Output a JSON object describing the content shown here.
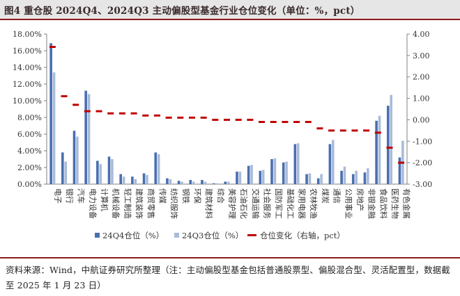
{
  "figure": {
    "title": "图4  重仓股 2024Q4、2024Q3 主动偏股型基金行业仓位变化（单位：%，pct）",
    "source": "资料来源：Wind，中航证券研究所整理（注：主动偏股型基金包括普通股票型、偏股混合型、灵活配置型，数据截至 2025 年 1 月 23 日）"
  },
  "chart_data": {
    "type": "bar",
    "categories": [
      "电子",
      "银行",
      "汽车",
      "电力设备",
      "计算机",
      "机械设备",
      "轻工制造",
      "建筑装饰",
      "商贸零售",
      "传媒",
      "纺织服饰",
      "钢铁",
      "环保",
      "建筑材料",
      "综合",
      "美容护理",
      "石油石化",
      "交通运输",
      "社会服务",
      "国防军工",
      "基础化工",
      "家用电器",
      "农林牧渔",
      "煤炭",
      "通信",
      "公用事业",
      "房地产",
      "非银金融",
      "食品饮料",
      "医药生物",
      "有色金属"
    ],
    "series": [
      {
        "name": "24Q4仓位（%）",
        "axis": "left",
        "color": "#4a6fb0",
        "values": [
          16.9,
          3.8,
          6.4,
          11.2,
          2.8,
          3.3,
          1.2,
          0.9,
          1.3,
          3.8,
          0.7,
          0.4,
          0.5,
          0.5,
          0.1,
          0.3,
          1.5,
          2.2,
          1.6,
          3.0,
          2.6,
          4.8,
          1.2,
          0.7,
          4.8,
          1.6,
          1.2,
          1.4,
          7.6,
          9.4,
          3.2
        ]
      },
      {
        "name": "24Q3仓位（%）",
        "axis": "left",
        "color": "#a9bbd9",
        "values": [
          13.4,
          2.7,
          5.7,
          10.8,
          2.4,
          3.0,
          0.9,
          0.6,
          1.1,
          3.6,
          0.6,
          0.3,
          0.3,
          0.3,
          0.1,
          0.3,
          1.5,
          2.3,
          1.7,
          3.1,
          2.7,
          4.9,
          1.3,
          1.2,
          5.3,
          2.1,
          1.6,
          1.9,
          8.2,
          10.7,
          5.2
        ]
      },
      {
        "name": "仓位变化（右轴，pct）",
        "axis": "right",
        "color": "#c00000",
        "mark": "dash",
        "values": [
          3.4,
          1.1,
          0.7,
          0.4,
          0.4,
          0.3,
          0.3,
          0.3,
          0.2,
          0.2,
          0.1,
          0.1,
          0.1,
          0.1,
          0.0,
          0.0,
          0.0,
          0.0,
          -0.1,
          -0.1,
          -0.1,
          -0.1,
          -0.1,
          -0.4,
          -0.5,
          -0.5,
          -0.5,
          -0.5,
          -0.6,
          -1.3,
          -2.0
        ]
      }
    ],
    "y_left": {
      "min": 0,
      "max": 18,
      "step": 2,
      "tick_labels": [
        "0.00%",
        "2.00%",
        "4.00%",
        "6.00%",
        "8.00%",
        "10.00%",
        "12.00%",
        "14.00%",
        "16.00%",
        "18.00%"
      ]
    },
    "y_right": {
      "min": -3,
      "max": 4,
      "step": 1,
      "tick_labels": [
        "-3.00",
        "-2.00",
        "-1.00",
        "0.00",
        "1.00",
        "2.00",
        "3.00",
        "4.00"
      ]
    },
    "grid": false,
    "legend_position": "bottom"
  }
}
